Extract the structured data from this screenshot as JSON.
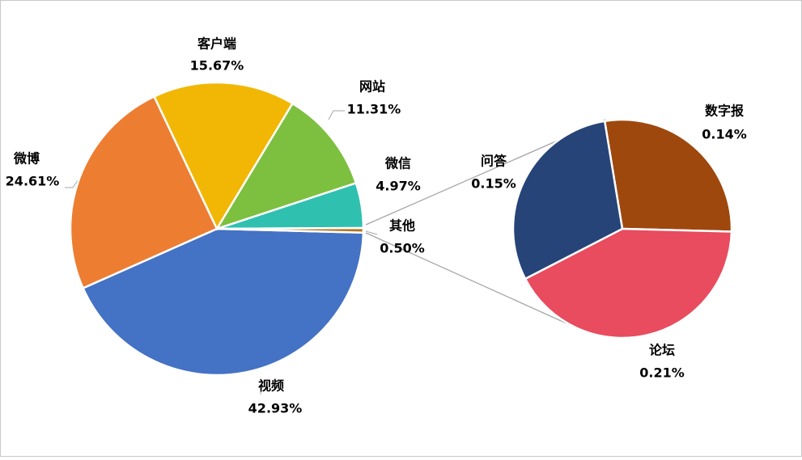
{
  "chart_data": [
    {
      "type": "pie",
      "categories": [
        "视频",
        "微博",
        "客户端",
        "网站",
        "微信",
        "其他"
      ],
      "values": [
        42.93,
        24.61,
        15.67,
        11.31,
        4.97,
        0.5
      ],
      "value_labels": [
        "42.93%",
        "24.61%",
        "15.67%",
        "11.31%",
        "4.97%",
        "0.50%"
      ],
      "colors": [
        "#4472c4",
        "#ed7d31",
        "#f2b705",
        "#7dbf3f",
        "#2fc0b0",
        "#b5761b"
      ]
    },
    {
      "type": "pie",
      "categories": [
        "数字报",
        "论坛",
        "问答"
      ],
      "values": [
        0.14,
        0.21,
        0.15
      ],
      "value_labels": [
        "0.14%",
        "0.21%",
        "0.15%"
      ],
      "colors": [
        "#9e480e",
        "#e84c5e",
        "#264478"
      ]
    }
  ]
}
